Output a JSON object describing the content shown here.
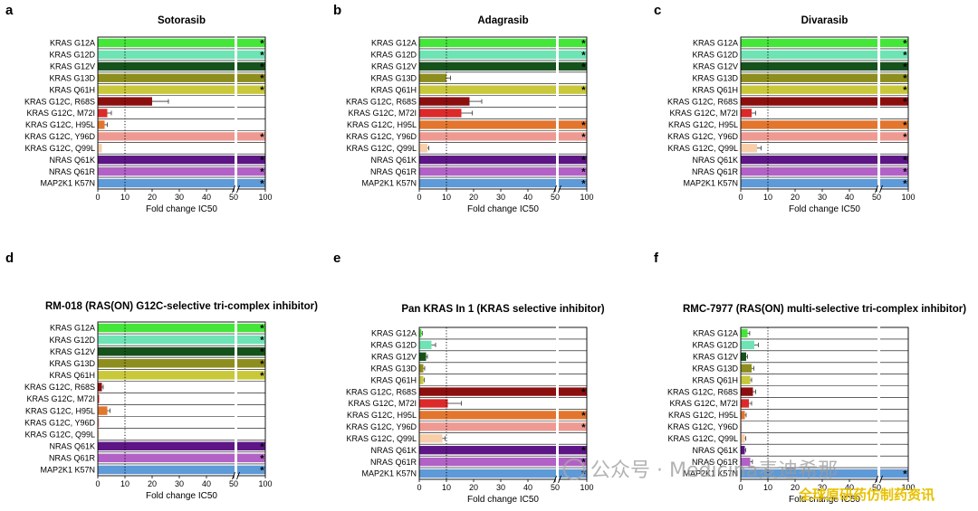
{
  "colors": {
    "KRAS G12A": "#44e63a",
    "KRAS G12D": "#6ee4b4",
    "KRAS G12V": "#16531c",
    "KRAS G13D": "#8e8e1e",
    "KRAS Q61H": "#c8c83a",
    "KRAS G12C, R68S": "#8c0f0f",
    "KRAS G12C, M72I": "#dc2a2a",
    "KRAS G12C, H95L": "#e2762e",
    "KRAS G12C, Y96D": "#ee9a92",
    "KRAS G12C, Q99L": "#f8ceaa",
    "NRAS Q61K": "#5e1686",
    "NRAS Q61R": "#b262c6",
    "MAP2K1 K57N": "#5e9ad8"
  },
  "chart_data": [
    {
      "panel": "a",
      "type": "bar",
      "orientation": "horizontal",
      "title": "Sotorasib",
      "xlabel": "Fold change IC50",
      "xticks": [
        "0",
        "10",
        "20",
        "30",
        "40",
        "50",
        "100"
      ],
      "axis_break": [
        50,
        90
      ],
      "reference_line": 10,
      "categories": [
        "KRAS G12A",
        "KRAS G12D",
        "KRAS G12V",
        "KRAS G13D",
        "KRAS Q61H",
        "KRAS G12C, R68S",
        "KRAS G12C, M72I",
        "KRAS G12C, H95L",
        "KRAS G12C, Y96D",
        "KRAS G12C, Q99L",
        "NRAS Q61K",
        "NRAS Q61R",
        "MAP2K1 K57N"
      ],
      "values": [
        100,
        100,
        100,
        100,
        100,
        20,
        3.5,
        2.5,
        100,
        1.5,
        100,
        100,
        100
      ],
      "errors": [
        0,
        0,
        0,
        0,
        0,
        6,
        1.5,
        1,
        0,
        0,
        0,
        0,
        0
      ],
      "star": [
        true,
        true,
        true,
        true,
        true,
        false,
        false,
        false,
        true,
        false,
        true,
        true,
        true
      ]
    },
    {
      "panel": "b",
      "type": "bar",
      "orientation": "horizontal",
      "title": "Adagrasib",
      "xlabel": "Fold change IC50",
      "xticks": [
        "0",
        "10",
        "20",
        "30",
        "40",
        "50",
        "100"
      ],
      "axis_break": [
        50,
        90
      ],
      "reference_line": 10,
      "categories": [
        "KRAS G12A",
        "KRAS G12D",
        "KRAS G12V",
        "KRAS G13D",
        "KRAS Q61H",
        "KRAS G12C, R68S",
        "KRAS G12C, M72I",
        "KRAS G12C, H95L",
        "KRAS G12C, Y96D",
        "KRAS G12C, Q99L",
        "NRAS Q61K",
        "NRAS Q61R",
        "MAP2K1 K57N"
      ],
      "values": [
        100,
        100,
        100,
        10,
        100,
        18.5,
        15.5,
        100,
        100,
        3,
        100,
        100,
        100
      ],
      "errors": [
        0,
        0,
        0,
        1.5,
        0,
        4.5,
        4,
        0,
        0,
        0.5,
        0,
        0,
        0
      ],
      "star": [
        true,
        true,
        true,
        false,
        true,
        false,
        false,
        true,
        true,
        false,
        true,
        true,
        true
      ]
    },
    {
      "panel": "c",
      "type": "bar",
      "orientation": "horizontal",
      "title": "Divarasib",
      "xlabel": "Fold change IC50",
      "xticks": [
        "0",
        "10",
        "20",
        "30",
        "40",
        "50",
        "100"
      ],
      "axis_break": [
        50,
        90
      ],
      "reference_line": 10,
      "categories": [
        "KRAS G12A",
        "KRAS G12D",
        "KRAS G12V",
        "KRAS G13D",
        "KRAS Q61H",
        "KRAS G12C, R68S",
        "KRAS G12C, M72I",
        "KRAS G12C, H95L",
        "KRAS G12C, Y96D",
        "KRAS G12C, Q99L",
        "NRAS Q61K",
        "NRAS Q61R",
        "MAP2K1 K57N"
      ],
      "values": [
        100,
        100,
        100,
        100,
        100,
        100,
        4,
        100,
        100,
        6,
        100,
        100,
        100
      ],
      "errors": [
        0,
        0,
        0,
        0,
        0,
        0,
        1.5,
        0,
        0,
        1.5,
        0,
        0,
        0
      ],
      "star": [
        true,
        true,
        true,
        true,
        true,
        true,
        false,
        true,
        true,
        false,
        true,
        true,
        true
      ]
    },
    {
      "panel": "d",
      "type": "bar",
      "orientation": "horizontal",
      "title": "RM-018 (RAS(ON) G12C-selective tri-complex inhibitor)",
      "xlabel": "Fold change IC50",
      "xticks": [
        "0",
        "10",
        "20",
        "30",
        "40",
        "50",
        "100"
      ],
      "axis_break": [
        50,
        90
      ],
      "reference_line": 10,
      "categories": [
        "KRAS G12A",
        "KRAS G12D",
        "KRAS G12V",
        "KRAS G13D",
        "KRAS Q61H",
        "KRAS G12C, R68S",
        "KRAS G12C, M72I",
        "KRAS G12C, H95L",
        "KRAS G12C, Y96D",
        "KRAS G12C, Q99L",
        "NRAS Q61K",
        "NRAS Q61R",
        "MAP2K1 K57N"
      ],
      "values": [
        100,
        100,
        100,
        100,
        100,
        1.5,
        0.5,
        3.5,
        0.5,
        0.5,
        100,
        100,
        100
      ],
      "errors": [
        0,
        0,
        0,
        0,
        0,
        0.5,
        0,
        1,
        0,
        0,
        0,
        0,
        0
      ],
      "star": [
        true,
        true,
        true,
        true,
        true,
        false,
        false,
        false,
        false,
        false,
        true,
        true,
        true
      ]
    },
    {
      "panel": "e",
      "type": "bar",
      "orientation": "horizontal",
      "title": "Pan KRAS In 1 (KRAS selective inhibitor)",
      "xlabel": "Fold change IC50",
      "xticks": [
        "0",
        "10",
        "20",
        "30",
        "40",
        "50",
        "100"
      ],
      "axis_break": [
        50,
        90
      ],
      "reference_line": 10,
      "categories": [
        "KRAS G12A",
        "KRAS G12D",
        "KRAS G12V",
        "KRAS G13D",
        "KRAS Q61H",
        "KRAS G12C, R68S",
        "KRAS G12C, M72I",
        "KRAS G12C, H95L",
        "KRAS G12C, Y96D",
        "KRAS G12C, Q99L",
        "NRAS Q61K",
        "NRAS Q61R",
        "MAP2K1 K57N"
      ],
      "values": [
        0.8,
        4.5,
        2.5,
        1.5,
        1.5,
        100,
        10.5,
        100,
        100,
        8.5,
        100,
        100,
        100
      ],
      "errors": [
        0.3,
        1.5,
        0.5,
        0.5,
        0.3,
        0,
        5,
        0,
        0,
        1,
        0,
        0,
        0
      ],
      "star": [
        false,
        false,
        false,
        false,
        false,
        true,
        false,
        true,
        true,
        false,
        true,
        true,
        true
      ]
    },
    {
      "panel": "f",
      "type": "bar",
      "orientation": "horizontal",
      "title": "RMC-7977 (RAS(ON) multi-selective tri-complex inhibitor)",
      "xlabel": "Fold change IC50",
      "xticks": [
        "0",
        "10",
        "20",
        "30",
        "40",
        "50",
        "100"
      ],
      "axis_break": [
        50,
        90
      ],
      "reference_line": 10,
      "categories": [
        "KRAS G12A",
        "KRAS G12D",
        "KRAS G12V",
        "KRAS G13D",
        "KRAS Q61H",
        "KRAS G12C, R68S",
        "KRAS G12C, M72I",
        "KRAS G12C, H95L",
        "KRAS G12C, Y96D",
        "KRAS G12C, Q99L",
        "NRAS Q61K",
        "NRAS Q61R",
        "MAP2K1 K57N"
      ],
      "values": [
        2.5,
        5,
        2,
        4,
        3.5,
        4.5,
        3,
        1.5,
        0.3,
        1.5,
        1.5,
        3.5,
        100
      ],
      "errors": [
        0.8,
        1.5,
        0.5,
        0.8,
        0.5,
        1,
        1,
        0.5,
        0,
        0.3,
        0.3,
        0.8,
        0
      ],
      "star": [
        false,
        false,
        false,
        false,
        false,
        false,
        false,
        false,
        false,
        false,
        false,
        false,
        true
      ]
    }
  ],
  "watermark": {
    "text": "公众号 · Medicina麦迪希那",
    "text2": "全球原研药仿制药资讯"
  }
}
